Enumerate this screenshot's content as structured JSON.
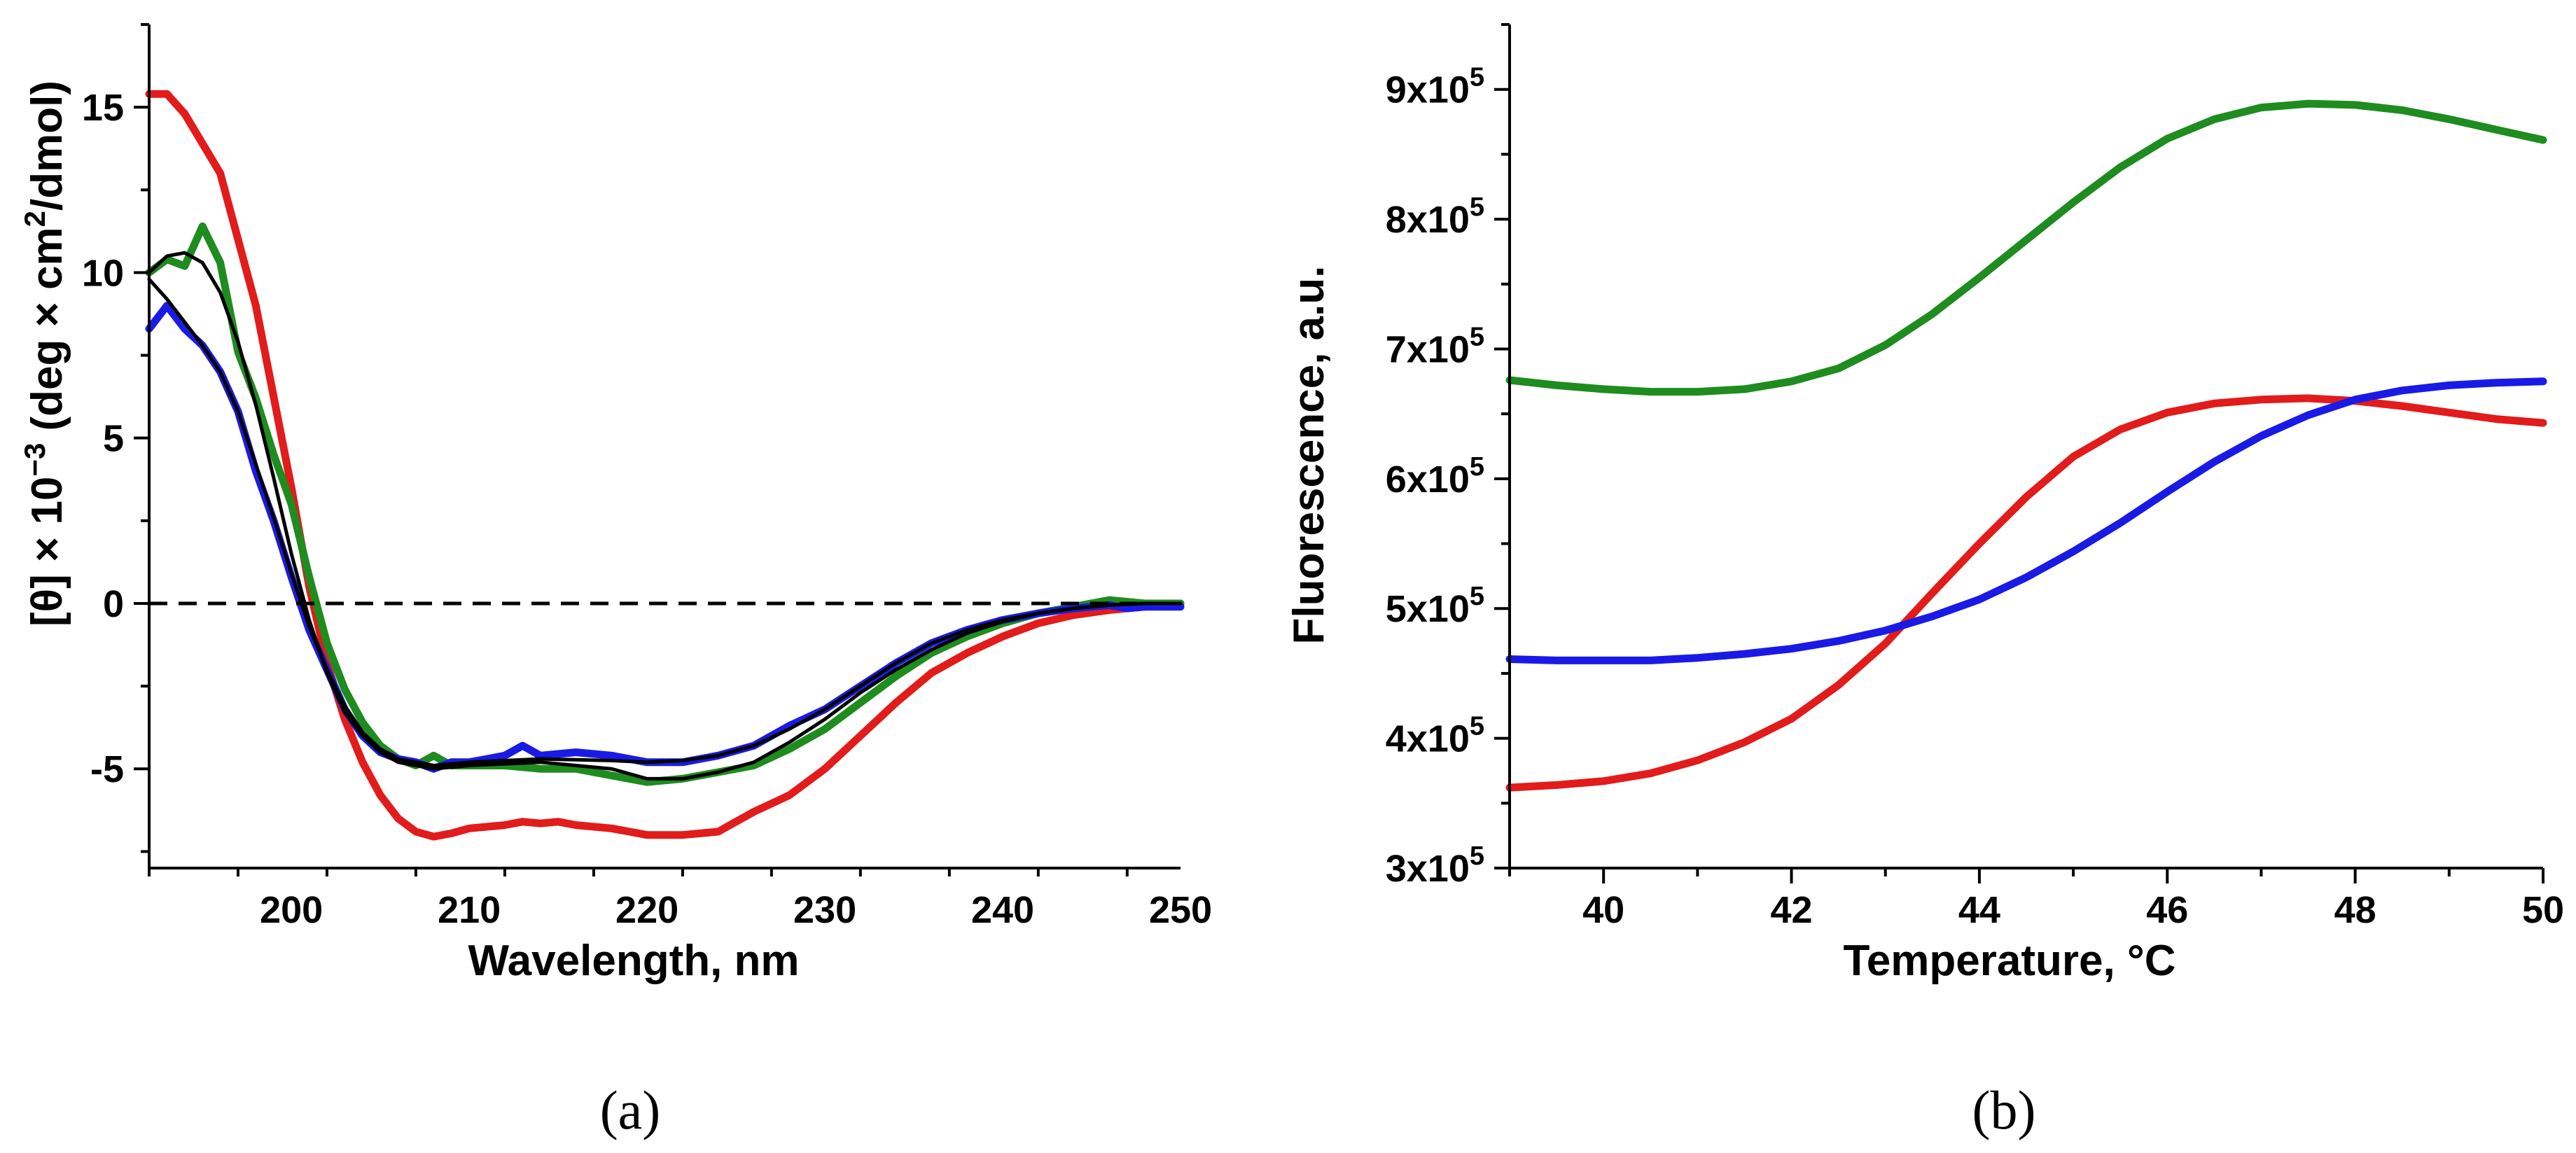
{
  "chart_data": [
    {
      "type": "line",
      "panel_label": "(a)",
      "xlabel": "Wavelength, nm",
      "ylabel_parts": {
        "pre": "[θ] × 10",
        "exp1": "−3",
        "mid": " (deg × cm",
        "exp2": "2",
        "post": "/dmol)"
      },
      "xlim": [
        192,
        250
      ],
      "ylim": [
        -8,
        17.5
      ],
      "xticks": [
        200,
        210,
        220,
        230,
        240,
        250
      ],
      "yticks": [
        -5,
        0,
        5,
        10,
        15
      ],
      "xtick_labels": [
        "200",
        "210",
        "220",
        "230",
        "240",
        "250"
      ],
      "ytick_labels": [
        "-5",
        "0",
        "5",
        "10",
        "15"
      ],
      "zero_line": {
        "y": 0,
        "style": "dashed",
        "color": "#000000"
      },
      "series": [
        {
          "name": "red",
          "color": "#e21b1b",
          "x": [
            192,
            193,
            194,
            196,
            198,
            200,
            201,
            202,
            203,
            204,
            205,
            206,
            207,
            208,
            209,
            210,
            212,
            213,
            214,
            215,
            216,
            218,
            220,
            222,
            224,
            225,
            226,
            228,
            230,
            232,
            234,
            236,
            238,
            240,
            242,
            244,
            246,
            248,
            250
          ],
          "values": [
            15.4,
            15.4,
            14.8,
            13.0,
            9.0,
            3.5,
            0.5,
            -1.8,
            -3.5,
            -4.8,
            -5.8,
            -6.5,
            -6.9,
            -7.05,
            -6.95,
            -6.8,
            -6.7,
            -6.6,
            -6.65,
            -6.6,
            -6.7,
            -6.8,
            -7.0,
            -7.0,
            -6.9,
            -6.6,
            -6.3,
            -5.8,
            -5.0,
            -4.0,
            -3.0,
            -2.1,
            -1.5,
            -1.0,
            -0.6,
            -0.35,
            -0.2,
            -0.1,
            0.0
          ]
        },
        {
          "name": "green",
          "color": "#1e8c1e",
          "x": [
            192,
            193,
            194,
            195,
            196,
            197,
            198,
            199,
            200,
            201,
            202,
            203,
            204,
            205,
            206,
            207,
            208,
            209,
            210,
            212,
            214,
            216,
            218,
            220,
            222,
            224,
            226,
            228,
            230,
            232,
            234,
            236,
            238,
            240,
            242,
            244,
            246,
            247,
            248,
            250
          ],
          "values": [
            10.0,
            10.4,
            10.2,
            11.4,
            10.3,
            7.6,
            6.2,
            4.5,
            3.0,
            0.8,
            -1.2,
            -2.6,
            -3.6,
            -4.3,
            -4.7,
            -4.9,
            -4.6,
            -4.9,
            -4.9,
            -4.9,
            -5.0,
            -5.0,
            -5.2,
            -5.4,
            -5.3,
            -5.1,
            -4.9,
            -4.4,
            -3.8,
            -3.0,
            -2.2,
            -1.5,
            -1.0,
            -0.6,
            -0.3,
            -0.1,
            0.1,
            0.05,
            0.0,
            0.0
          ]
        },
        {
          "name": "blue",
          "color": "#1a1ae6",
          "x": [
            192,
            193,
            194,
            195,
            196,
            197,
            198,
            199,
            200,
            201,
            202,
            203,
            204,
            205,
            206,
            207,
            208,
            209,
            210,
            211,
            212,
            213,
            214,
            216,
            218,
            220,
            222,
            224,
            226,
            228,
            230,
            232,
            234,
            236,
            238,
            240,
            242,
            244,
            246,
            247,
            248,
            250
          ],
          "values": [
            8.3,
            9.0,
            8.3,
            7.8,
            7.0,
            5.8,
            4.0,
            2.5,
            0.8,
            -0.8,
            -2.0,
            -3.2,
            -4.0,
            -4.5,
            -4.7,
            -4.8,
            -5.0,
            -4.8,
            -4.8,
            -4.7,
            -4.6,
            -4.3,
            -4.6,
            -4.5,
            -4.6,
            -4.8,
            -4.8,
            -4.6,
            -4.3,
            -3.7,
            -3.2,
            -2.5,
            -1.8,
            -1.2,
            -0.8,
            -0.5,
            -0.3,
            -0.15,
            -0.05,
            -0.15,
            -0.1,
            -0.1
          ]
        },
        {
          "name": "fit-1",
          "color": "#000000",
          "thin": true,
          "x": [
            192,
            193,
            194,
            195,
            196,
            197,
            198,
            199,
            200,
            201,
            202,
            203,
            204,
            205,
            206,
            208,
            210,
            214,
            218,
            220,
            222,
            224,
            226,
            228,
            230,
            232,
            234,
            236,
            238,
            240,
            242,
            244,
            246,
            248,
            250
          ],
          "values": [
            10.0,
            10.5,
            10.6,
            10.3,
            9.4,
            7.9,
            6.0,
            3.8,
            1.5,
            -0.5,
            -2.1,
            -3.3,
            -4.0,
            -4.5,
            -4.8,
            -5.0,
            -4.9,
            -4.8,
            -5.0,
            -5.3,
            -5.3,
            -5.1,
            -4.8,
            -4.2,
            -3.5,
            -2.7,
            -2.0,
            -1.4,
            -0.9,
            -0.55,
            -0.3,
            -0.15,
            -0.05,
            0.0,
            0.0
          ]
        },
        {
          "name": "fit-2",
          "color": "#000000",
          "thin": true,
          "x": [
            192,
            193,
            194,
            195,
            196,
            197,
            198,
            199,
            200,
            201,
            202,
            203,
            204,
            205,
            206,
            208,
            210,
            214,
            218,
            220,
            222,
            224,
            226,
            228,
            230,
            232,
            234,
            236,
            238,
            240,
            242,
            244,
            246,
            248,
            250
          ],
          "values": [
            9.8,
            9.2,
            8.5,
            7.8,
            7.0,
            5.8,
            4.2,
            2.6,
            0.9,
            -0.7,
            -2.0,
            -3.1,
            -3.9,
            -4.4,
            -4.7,
            -4.9,
            -4.8,
            -4.7,
            -4.75,
            -4.8,
            -4.75,
            -4.6,
            -4.3,
            -3.8,
            -3.2,
            -2.5,
            -1.8,
            -1.2,
            -0.8,
            -0.5,
            -0.3,
            -0.15,
            -0.05,
            0.0,
            0.0
          ]
        }
      ]
    },
    {
      "type": "line",
      "panel_label": "(b)",
      "xlabel": "Temperature, °C",
      "ylabel": "Fluorescence, a.u.",
      "xlim": [
        39,
        50
      ],
      "ylim": [
        300000,
        950000
      ],
      "xticks": [
        40,
        42,
        44,
        46,
        48,
        50
      ],
      "yticks": [
        300000,
        400000,
        500000,
        600000,
        700000,
        800000,
        900000
      ],
      "xtick_labels": [
        "40",
        "42",
        "44",
        "46",
        "48",
        "50"
      ],
      "ytick_labels": [
        {
          "base": "3x10",
          "exp": "5"
        },
        {
          "base": "4x10",
          "exp": "5"
        },
        {
          "base": "5x10",
          "exp": "5"
        },
        {
          "base": "6x10",
          "exp": "5"
        },
        {
          "base": "7x10",
          "exp": "5"
        },
        {
          "base": "8x10",
          "exp": "5"
        },
        {
          "base": "9x10",
          "exp": "5"
        }
      ],
      "series": [
        {
          "name": "green",
          "color": "#1e8c1e",
          "x": [
            39,
            39.5,
            40,
            40.5,
            41,
            41.5,
            42,
            42.5,
            43,
            43.5,
            44,
            44.5,
            45,
            45.5,
            46,
            46.5,
            47,
            47.5,
            48,
            48.5,
            49,
            49.5,
            50
          ],
          "values": [
            676000,
            672000,
            669000,
            667000,
            667000,
            669000,
            675000,
            685000,
            703000,
            727000,
            755000,
            784000,
            813000,
            840000,
            862000,
            877000,
            886000,
            889000,
            888000,
            884000,
            877000,
            869000,
            861000
          ]
        },
        {
          "name": "red",
          "color": "#e21b1b",
          "x": [
            39,
            39.5,
            40,
            40.5,
            41,
            41.5,
            42,
            42.5,
            43,
            43.5,
            44,
            44.5,
            45,
            45.5,
            46,
            46.5,
            47,
            47.5,
            48,
            48.5,
            49,
            49.5,
            50
          ],
          "values": [
            362000,
            364000,
            367000,
            373000,
            383000,
            397000,
            415000,
            441000,
            473000,
            512000,
            550000,
            586000,
            617000,
            638000,
            651000,
            658000,
            661000,
            662000,
            660000,
            656000,
            651000,
            646000,
            643000
          ]
        },
        {
          "name": "blue",
          "color": "#1a1ae6",
          "x": [
            39,
            39.5,
            40,
            40.5,
            41,
            41.5,
            42,
            42.5,
            43,
            43.5,
            44,
            44.5,
            45,
            45.5,
            46,
            46.5,
            47,
            47.5,
            48,
            48.5,
            49,
            49.5,
            50
          ],
          "values": [
            461000,
            460000,
            460000,
            460000,
            462000,
            465000,
            469000,
            475000,
            483000,
            494000,
            507000,
            524000,
            544000,
            566000,
            590000,
            613000,
            633000,
            649000,
            661000,
            668000,
            672000,
            674000,
            675000
          ]
        }
      ]
    }
  ]
}
